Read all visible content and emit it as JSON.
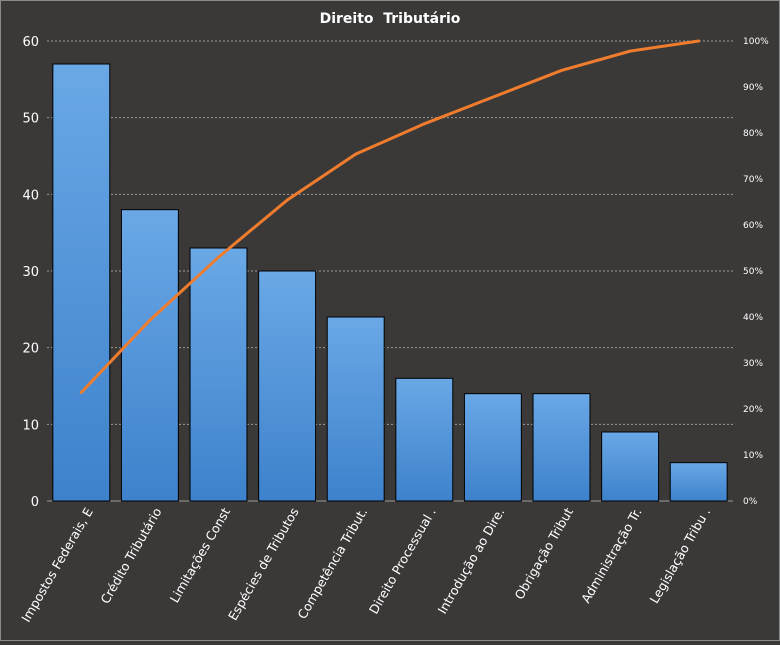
{
  "chart_data": {
    "type": "bar",
    "title": "Direito  Tributário",
    "categories": [
      "Impostos Federais, E",
      "Crédito Tributário",
      "Limitações Const",
      "Espécies de Tributos",
      "Competência Tribut.",
      "Direito Processual .",
      "Introdução ao Dire.",
      "Obrigação Tribut",
      "Administração Tr.",
      "Legislação Tribu ."
    ],
    "series": [
      {
        "type": "bar",
        "values": [
          57,
          38,
          33,
          30,
          24,
          16,
          14,
          14,
          9,
          5
        ],
        "axis": "left"
      },
      {
        "type": "line",
        "values": [
          23.6,
          39.3,
          53.0,
          65.4,
          75.4,
          82.0,
          87.8,
          93.6,
          97.8,
          100.0
        ],
        "axis": "right"
      }
    ],
    "left_axis": {
      "min": 0,
      "max": 60,
      "ticks": [
        "0",
        "10",
        "20",
        "30",
        "40",
        "50",
        "60"
      ]
    },
    "right_axis": {
      "min": 0,
      "max": 100,
      "ticks": [
        "0%",
        "10%",
        "20%",
        "30%",
        "40%",
        "50%",
        "60%",
        "70%",
        "80%",
        "90%",
        "100%"
      ]
    },
    "grid": true,
    "legend": "none",
    "colors": {
      "background": "#3b3938",
      "bar_top": "#6aa8e6",
      "bar_bottom": "#3d82cc",
      "bar_border": "#000000",
      "line": "#f07c2e",
      "grid": "#9a9a9a",
      "text": "#ffffff"
    }
  }
}
